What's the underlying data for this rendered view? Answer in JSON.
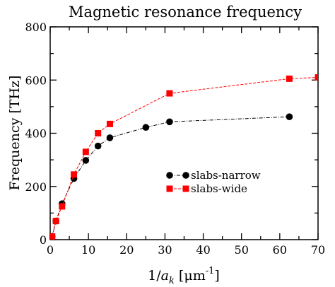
{
  "chart_data": {
    "type": "line",
    "title": "Magnetic resonance frequency",
    "ylabel": "Frequency [THz]",
    "xlabel_parts": {
      "prefix": "1/",
      "var": "a",
      "sub": "k",
      "unit_open": " [μm",
      "sup": "-1",
      "unit_close": "]"
    },
    "xlim": [
      0,
      70
    ],
    "ylim": [
      0,
      800
    ],
    "x_ticks": [
      0,
      10,
      20,
      30,
      40,
      50,
      60,
      70
    ],
    "y_ticks": [
      0,
      200,
      400,
      600,
      800
    ],
    "grid": false,
    "legend_position": "center-right",
    "series": [
      {
        "name": "slabs-narrow",
        "color": "#000000",
        "marker": "circle",
        "line": "dash-dot",
        "x": [
          0.5,
          1.5,
          3.1,
          6.2,
          9.3,
          12.5,
          15.6,
          25.0,
          31.2,
          62.5
        ],
        "y": [
          12,
          70,
          135,
          230,
          298,
          352,
          383,
          422,
          443,
          462
        ]
      },
      {
        "name": "slabs-wide",
        "color": "#ff0000",
        "marker": "square",
        "line": "dashed",
        "x": [
          0.5,
          1.5,
          3.1,
          6.2,
          9.3,
          12.5,
          15.6,
          31.2,
          62.5,
          70.0
        ],
        "y": [
          12,
          70,
          125,
          245,
          330,
          400,
          435,
          550,
          605,
          610
        ]
      }
    ]
  }
}
